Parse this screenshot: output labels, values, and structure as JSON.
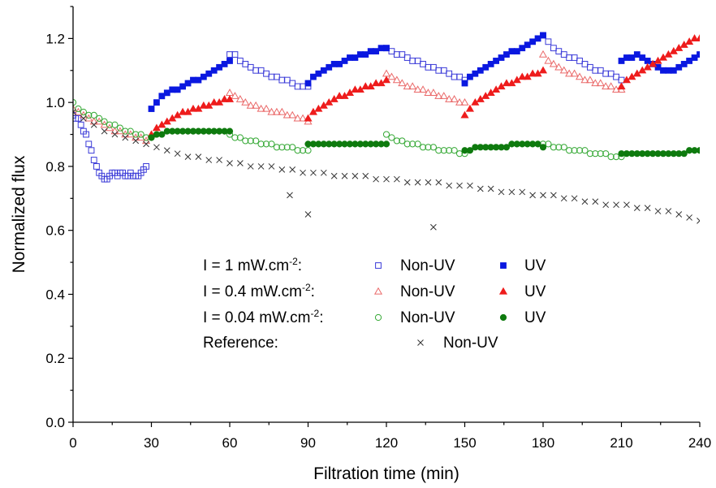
{
  "chart_data": {
    "type": "scatter",
    "xlabel": "Filtration time (min)",
    "ylabel": "Normalized flux",
    "xlim": [
      0,
      240
    ],
    "ylim": [
      0,
      1.3
    ],
    "xticks": [
      "0",
      "30",
      "60",
      "90",
      "120",
      "150",
      "180",
      "210",
      "240"
    ],
    "yticks": [
      "0.0",
      "0.2",
      "0.4",
      "0.6",
      "0.8",
      "1.0",
      "1.2"
    ],
    "grid": false,
    "legend_position": "center-left",
    "legend": {
      "rows": [
        {
          "group_main": "I = 1 mW.cm",
          "group_exp": "-2",
          "group_tail": ":",
          "nonuv": "Non-UV",
          "uv": "UV"
        },
        {
          "group_main": "I = 0.4 mW.cm",
          "group_exp": "-2",
          "group_tail": ":",
          "nonuv": "Non-UV",
          "uv": "UV"
        },
        {
          "group_main": "I = 0.04 mW.cm",
          "group_exp": "-2",
          "group_tail": ":",
          "nonuv": "Non-UV",
          "uv": "UV"
        },
        {
          "group_main": "Reference:",
          "group_exp": "",
          "group_tail": "",
          "nonuv": "Non-UV",
          "uv": ""
        }
      ]
    },
    "series": [
      {
        "name": "I = 1 mW.cm-2 Non-UV",
        "color": "#3a3ad8",
        "marker": "square-open",
        "x": [
          0,
          1,
          2,
          3,
          4,
          5,
          6,
          7,
          8,
          9,
          10,
          11,
          12,
          13,
          14,
          15,
          16,
          17,
          18,
          19,
          20,
          21,
          22,
          23,
          24,
          25,
          26,
          27,
          28,
          60,
          62,
          64,
          66,
          68,
          70,
          72,
          74,
          76,
          78,
          80,
          82,
          84,
          86,
          88,
          90,
          120,
          122,
          124,
          126,
          128,
          130,
          132,
          134,
          136,
          138,
          140,
          142,
          144,
          146,
          148,
          150,
          180,
          182,
          184,
          186,
          188,
          190,
          192,
          194,
          196,
          198,
          200,
          202,
          204,
          206,
          208,
          210
        ],
        "y": [
          0.96,
          0.95,
          0.95,
          0.93,
          0.91,
          0.9,
          0.87,
          0.85,
          0.82,
          0.8,
          0.78,
          0.77,
          0.76,
          0.76,
          0.77,
          0.78,
          0.78,
          0.77,
          0.78,
          0.78,
          0.77,
          0.77,
          0.78,
          0.77,
          0.77,
          0.77,
          0.78,
          0.79,
          0.8,
          1.15,
          1.15,
          1.13,
          1.12,
          1.11,
          1.1,
          1.1,
          1.09,
          1.08,
          1.08,
          1.07,
          1.07,
          1.06,
          1.05,
          1.05,
          1.05,
          1.17,
          1.16,
          1.15,
          1.15,
          1.14,
          1.13,
          1.13,
          1.12,
          1.11,
          1.11,
          1.1,
          1.1,
          1.09,
          1.08,
          1.08,
          1.07,
          1.21,
          1.19,
          1.17,
          1.16,
          1.15,
          1.14,
          1.14,
          1.13,
          1.12,
          1.11,
          1.1,
          1.1,
          1.09,
          1.09,
          1.08,
          1.07
        ]
      },
      {
        "name": "I = 1 mW.cm-2 UV",
        "color": "#0a18e0",
        "marker": "square-filled",
        "x": [
          30,
          32,
          34,
          36,
          38,
          40,
          42,
          44,
          46,
          48,
          50,
          52,
          54,
          56,
          58,
          60,
          90,
          92,
          94,
          96,
          98,
          100,
          102,
          104,
          106,
          108,
          110,
          112,
          114,
          116,
          118,
          120,
          150,
          152,
          154,
          156,
          158,
          160,
          162,
          164,
          166,
          168,
          170,
          172,
          174,
          176,
          178,
          180,
          210,
          212,
          214,
          216,
          218,
          220,
          222,
          224,
          226,
          228,
          230,
          232,
          234,
          236,
          238,
          240
        ],
        "y": [
          0.98,
          1.0,
          1.02,
          1.03,
          1.04,
          1.04,
          1.05,
          1.06,
          1.07,
          1.07,
          1.08,
          1.09,
          1.1,
          1.11,
          1.12,
          1.13,
          1.06,
          1.08,
          1.09,
          1.1,
          1.11,
          1.12,
          1.12,
          1.13,
          1.14,
          1.14,
          1.15,
          1.15,
          1.16,
          1.16,
          1.17,
          1.17,
          1.06,
          1.08,
          1.09,
          1.1,
          1.11,
          1.12,
          1.13,
          1.14,
          1.15,
          1.16,
          1.16,
          1.17,
          1.18,
          1.19,
          1.2,
          1.21,
          1.13,
          1.14,
          1.14,
          1.15,
          1.14,
          1.13,
          1.12,
          1.11,
          1.1,
          1.1,
          1.1,
          1.11,
          1.12,
          1.13,
          1.14,
          1.15
        ]
      },
      {
        "name": "I = 0.4 mW.cm-2 Non-UV",
        "color": "#ea6a6a",
        "marker": "triangle-open",
        "x": [
          0,
          2,
          4,
          6,
          8,
          10,
          12,
          14,
          16,
          18,
          20,
          22,
          24,
          26,
          28,
          60,
          62,
          64,
          66,
          68,
          70,
          72,
          74,
          76,
          78,
          80,
          82,
          84,
          86,
          88,
          90,
          120,
          122,
          124,
          126,
          128,
          130,
          132,
          134,
          136,
          138,
          140,
          142,
          144,
          146,
          148,
          150,
          180,
          182,
          184,
          186,
          188,
          190,
          192,
          194,
          196,
          198,
          200,
          202,
          204,
          206,
          208,
          210
        ],
        "y": [
          0.98,
          0.97,
          0.96,
          0.95,
          0.94,
          0.94,
          0.93,
          0.92,
          0.91,
          0.91,
          0.9,
          0.9,
          0.89,
          0.89,
          0.88,
          1.03,
          1.02,
          1.01,
          1.0,
          0.99,
          0.99,
          0.98,
          0.98,
          0.97,
          0.97,
          0.97,
          0.96,
          0.96,
          0.95,
          0.95,
          0.94,
          1.09,
          1.08,
          1.07,
          1.06,
          1.05,
          1.05,
          1.04,
          1.04,
          1.03,
          1.03,
          1.02,
          1.02,
          1.01,
          1.01,
          1.0,
          1.0,
          1.15,
          1.13,
          1.12,
          1.11,
          1.1,
          1.09,
          1.09,
          1.08,
          1.07,
          1.07,
          1.06,
          1.06,
          1.05,
          1.05,
          1.04,
          1.04
        ]
      },
      {
        "name": "I = 0.4 mW.cm-2 UV",
        "color": "#ee1c1c",
        "marker": "triangle-filled",
        "x": [
          30,
          32,
          34,
          36,
          38,
          40,
          42,
          44,
          46,
          48,
          50,
          52,
          54,
          56,
          58,
          60,
          90,
          92,
          94,
          96,
          98,
          100,
          102,
          104,
          106,
          108,
          110,
          112,
          114,
          116,
          118,
          120,
          150,
          152,
          154,
          156,
          158,
          160,
          162,
          164,
          166,
          168,
          170,
          172,
          174,
          176,
          178,
          180,
          210,
          212,
          214,
          216,
          218,
          220,
          222,
          224,
          226,
          228,
          230,
          232,
          234,
          236,
          238,
          240
        ],
        "y": [
          0.9,
          0.92,
          0.93,
          0.94,
          0.95,
          0.96,
          0.97,
          0.97,
          0.98,
          0.98,
          0.99,
          0.99,
          1.0,
          1.0,
          1.01,
          1.01,
          0.95,
          0.97,
          0.98,
          0.99,
          1.0,
          1.01,
          1.02,
          1.02,
          1.03,
          1.04,
          1.04,
          1.05,
          1.05,
          1.06,
          1.06,
          1.07,
          0.96,
          0.98,
          1.0,
          1.01,
          1.02,
          1.03,
          1.04,
          1.05,
          1.06,
          1.06,
          1.07,
          1.08,
          1.08,
          1.09,
          1.09,
          1.1,
          1.05,
          1.07,
          1.08,
          1.09,
          1.1,
          1.11,
          1.12,
          1.13,
          1.14,
          1.15,
          1.16,
          1.17,
          1.18,
          1.19,
          1.2,
          1.2
        ]
      },
      {
        "name": "I = 0.04 mW.cm-2 Non-UV",
        "color": "#34a834",
        "marker": "circle-open",
        "x": [
          0,
          2,
          4,
          6,
          8,
          10,
          12,
          14,
          16,
          18,
          20,
          22,
          24,
          26,
          28,
          60,
          62,
          64,
          66,
          68,
          70,
          72,
          74,
          76,
          78,
          80,
          82,
          84,
          86,
          88,
          90,
          120,
          122,
          124,
          126,
          128,
          130,
          132,
          134,
          136,
          138,
          140,
          142,
          144,
          146,
          148,
          150,
          180,
          182,
          184,
          186,
          188,
          190,
          192,
          194,
          196,
          198,
          200,
          202,
          204,
          206,
          208,
          210
        ],
        "y": [
          1.0,
          0.98,
          0.97,
          0.96,
          0.96,
          0.95,
          0.94,
          0.93,
          0.93,
          0.92,
          0.91,
          0.91,
          0.9,
          0.9,
          0.89,
          0.9,
          0.89,
          0.89,
          0.88,
          0.88,
          0.88,
          0.87,
          0.87,
          0.87,
          0.86,
          0.86,
          0.86,
          0.86,
          0.85,
          0.85,
          0.85,
          0.9,
          0.89,
          0.88,
          0.88,
          0.87,
          0.87,
          0.87,
          0.86,
          0.86,
          0.86,
          0.85,
          0.85,
          0.85,
          0.85,
          0.84,
          0.84,
          0.87,
          0.87,
          0.86,
          0.86,
          0.86,
          0.85,
          0.85,
          0.85,
          0.85,
          0.84,
          0.84,
          0.84,
          0.84,
          0.83,
          0.83,
          0.83
        ]
      },
      {
        "name": "I = 0.04 mW.cm-2 UV",
        "color": "#0e7a0e",
        "marker": "circle-filled",
        "x": [
          30,
          32,
          34,
          36,
          38,
          40,
          42,
          44,
          46,
          48,
          50,
          52,
          54,
          56,
          58,
          60,
          90,
          92,
          94,
          96,
          98,
          100,
          102,
          104,
          106,
          108,
          110,
          112,
          114,
          116,
          118,
          120,
          150,
          152,
          154,
          156,
          158,
          160,
          162,
          164,
          166,
          168,
          170,
          172,
          174,
          176,
          178,
          180,
          210,
          212,
          214,
          216,
          218,
          220,
          222,
          224,
          226,
          228,
          230,
          232,
          234,
          236,
          238,
          240
        ],
        "y": [
          0.89,
          0.9,
          0.9,
          0.91,
          0.91,
          0.91,
          0.91,
          0.91,
          0.91,
          0.91,
          0.91,
          0.91,
          0.91,
          0.91,
          0.91,
          0.91,
          0.87,
          0.87,
          0.87,
          0.87,
          0.87,
          0.87,
          0.87,
          0.87,
          0.87,
          0.87,
          0.87,
          0.87,
          0.87,
          0.87,
          0.87,
          0.87,
          0.85,
          0.85,
          0.86,
          0.86,
          0.86,
          0.86,
          0.86,
          0.86,
          0.86,
          0.87,
          0.87,
          0.87,
          0.87,
          0.87,
          0.87,
          0.86,
          0.84,
          0.84,
          0.84,
          0.84,
          0.84,
          0.84,
          0.84,
          0.84,
          0.84,
          0.84,
          0.84,
          0.84,
          0.84,
          0.85,
          0.85,
          0.85
        ]
      },
      {
        "name": "Reference Non-UV",
        "color": "#333333",
        "marker": "x",
        "x": [
          0,
          4,
          8,
          12,
          16,
          20,
          24,
          28,
          32,
          36,
          40,
          44,
          48,
          52,
          56,
          60,
          64,
          68,
          72,
          76,
          80,
          84,
          88,
          92,
          96,
          100,
          104,
          108,
          112,
          116,
          120,
          124,
          128,
          132,
          136,
          140,
          144,
          148,
          152,
          156,
          160,
          164,
          168,
          172,
          176,
          180,
          184,
          188,
          192,
          196,
          200,
          204,
          208,
          212,
          216,
          220,
          224,
          228,
          232,
          236,
          240,
          83,
          90,
          138
        ],
        "y": [
          0.97,
          0.95,
          0.93,
          0.91,
          0.9,
          0.89,
          0.88,
          0.87,
          0.86,
          0.85,
          0.84,
          0.83,
          0.83,
          0.82,
          0.82,
          0.81,
          0.81,
          0.8,
          0.8,
          0.8,
          0.79,
          0.79,
          0.78,
          0.78,
          0.78,
          0.77,
          0.77,
          0.77,
          0.77,
          0.76,
          0.76,
          0.76,
          0.75,
          0.75,
          0.75,
          0.75,
          0.74,
          0.74,
          0.74,
          0.73,
          0.73,
          0.72,
          0.72,
          0.72,
          0.71,
          0.71,
          0.71,
          0.7,
          0.7,
          0.69,
          0.69,
          0.68,
          0.68,
          0.68,
          0.67,
          0.67,
          0.66,
          0.66,
          0.65,
          0.64,
          0.63,
          0.71,
          0.65,
          0.61
        ]
      }
    ]
  }
}
